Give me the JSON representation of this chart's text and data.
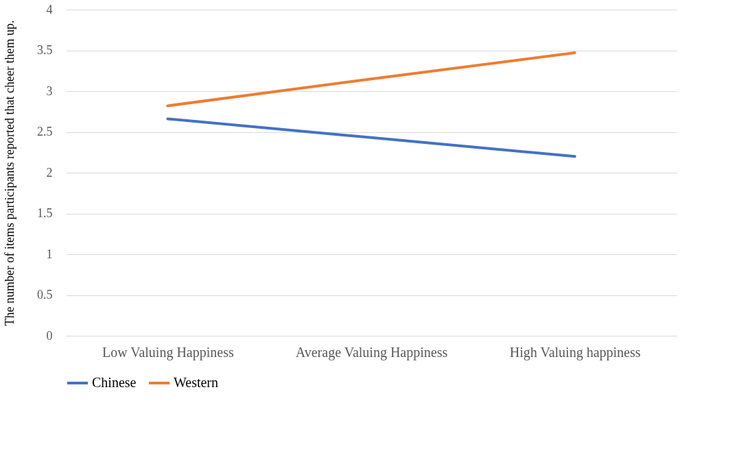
{
  "chart_data": {
    "type": "line",
    "ylabel": "The number of items participants reported that cheer them up.",
    "categories": [
      "Low Valuing Happiness",
      "Average Valuing Happiness",
      "High Valuing happiness"
    ],
    "series": [
      {
        "name": "Chinese",
        "color": "#4472c4",
        "values": [
          2.66,
          2.43,
          2.2
        ]
      },
      {
        "name": "Western",
        "color": "#ed7d31",
        "values": [
          2.82,
          3.15,
          3.47
        ]
      }
    ],
    "ylim": [
      0,
      4
    ],
    "yticks": [
      0,
      0.5,
      1,
      1.5,
      2,
      2.5,
      3,
      3.5,
      4
    ],
    "grid": "y",
    "legend": "bottom",
    "marker": "none",
    "line_style": "solid"
  }
}
